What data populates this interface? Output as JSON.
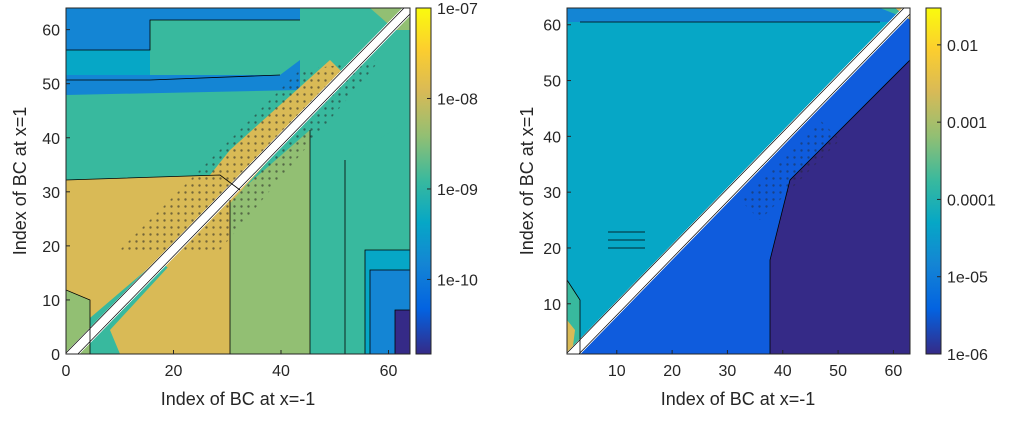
{
  "chart_data": [
    {
      "type": "contour",
      "xlabel": "Index of BC at x=-1",
      "ylabel": "Index of BC at x=1",
      "xlim": [
        0,
        64
      ],
      "ylim": [
        0,
        64
      ],
      "xticks": [
        0,
        20,
        40,
        60
      ],
      "yticks": [
        0,
        10,
        20,
        30,
        40,
        50,
        60
      ],
      "colorbar": {
        "scale": "log",
        "range": [
          1.5e-11,
          1e-07
        ],
        "ticks": [
          1e-07,
          1e-08,
          1e-09,
          1e-10
        ],
        "tick_labels": [
          "1e-07",
          "1e-08",
          "1e-09",
          "1e-10"
        ]
      },
      "diagonal_band": true
    },
    {
      "type": "contour",
      "xlabel": "Index of BC at x=-1",
      "ylabel": "Index of BC at x=1",
      "xlim": [
        1,
        63
      ],
      "ylim": [
        1,
        63
      ],
      "xticks": [
        10,
        20,
        30,
        40,
        50,
        60
      ],
      "yticks": [
        10,
        20,
        30,
        40,
        50,
        60
      ],
      "colorbar": {
        "scale": "log",
        "range": [
          1e-06,
          0.03
        ],
        "ticks": [
          0.01,
          0.001,
          0.0001,
          1e-05,
          1e-06
        ],
        "tick_labels": [
          "0.01",
          "0.001",
          "0.0001",
          "1e-05",
          "1e-06"
        ]
      },
      "diagonal_band": true
    }
  ],
  "colors": {
    "parula_dark": "#352a87",
    "parula_blue": "#0f5cdd",
    "parula_cyan": "#07a9c2",
    "parula_teal": "#38b99e",
    "parula_green": "#92bf73",
    "parula_orange": "#d9ba56",
    "parula_yellow": "#f9fb0e"
  }
}
